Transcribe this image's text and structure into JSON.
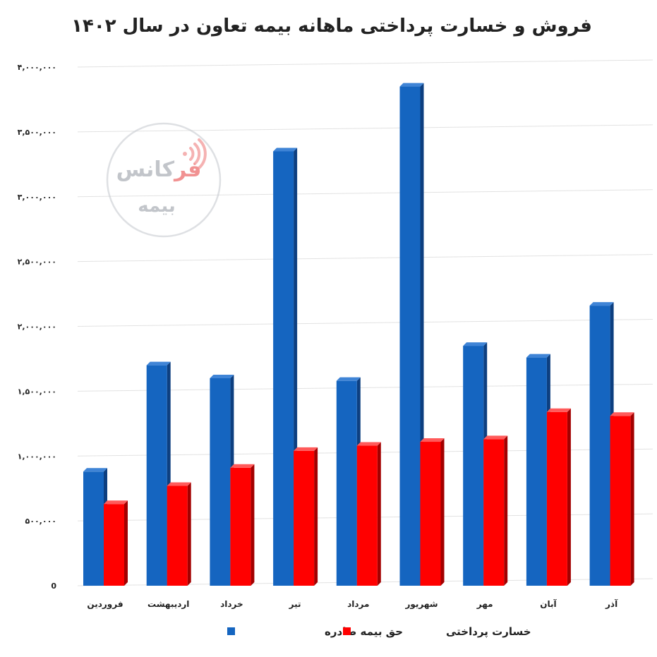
{
  "chart_data": {
    "type": "bar",
    "title": "فروش و خسارت پرداختی ماهانه بیمه تعاون در سال ۱۴۰۲",
    "xlabel": "",
    "ylabel": "",
    "categories": [
      "فروردین",
      "اردیبهشت",
      "خرداد",
      "تیر",
      "مرداد",
      "شهریور",
      "مهر",
      "آبان",
      "آذر"
    ],
    "series": [
      {
        "name": "حق بیمه صادره",
        "color": "#1565c0",
        "values": [
          880000,
          1700000,
          1600000,
          3350000,
          1580000,
          3850000,
          1850000,
          1760000,
          2160000
        ]
      },
      {
        "name": "خسارت پرداختی",
        "color": "#ff0000",
        "values": [
          630000,
          770000,
          910000,
          1040000,
          1080000,
          1110000,
          1130000,
          1340000,
          1310000
        ]
      }
    ],
    "ylim": [
      0,
      4000000
    ],
    "yticks": [
      {
        "value": 0,
        "label": "0"
      },
      {
        "value": 500000,
        "label": "۵۰۰,۰۰۰"
      },
      {
        "value": 1000000,
        "label": "۱,۰۰۰,۰۰۰"
      },
      {
        "value": 1500000,
        "label": "۱,۵۰۰,۰۰۰"
      },
      {
        "value": 2000000,
        "label": "۲,۰۰۰,۰۰۰"
      },
      {
        "value": 2500000,
        "label": "۲,۵۰۰,۰۰۰"
      },
      {
        "value": 3000000,
        "label": "۳,۰۰۰,۰۰۰"
      },
      {
        "value": 3500000,
        "label": "۳,۵۰۰,۰۰۰"
      },
      {
        "value": 4000000,
        "label": "۴,۰۰۰,۰۰۰"
      }
    ],
    "grid": true,
    "legend_position": "bottom-center"
  },
  "watermark": {
    "line1_red": "فر",
    "line1_gray": "کانس",
    "line2": "بیمه"
  }
}
